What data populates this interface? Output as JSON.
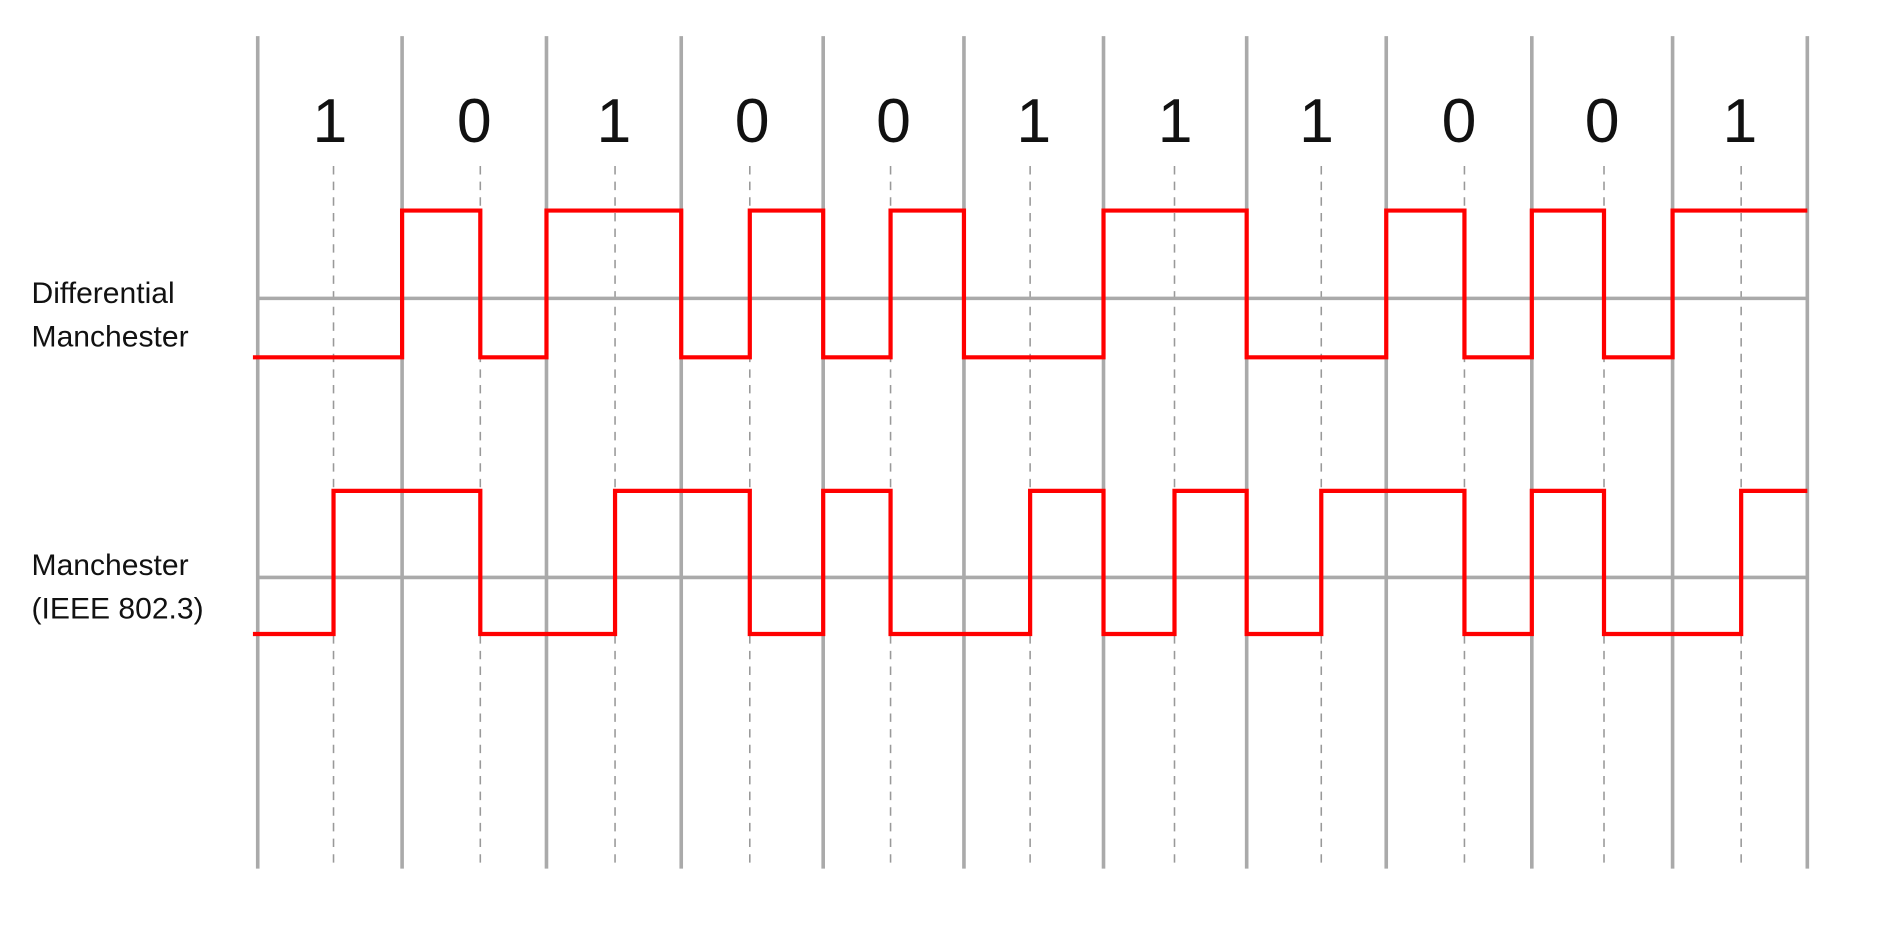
{
  "bits": [
    "1",
    "0",
    "1",
    "0",
    "0",
    "1",
    "1",
    "1",
    "0",
    "0",
    "1"
  ],
  "signals": [
    {
      "label_lines": [
        "Differential",
        "Manchester"
      ],
      "half_bit_levels": [
        0,
        0,
        1,
        0,
        1,
        1,
        0,
        1,
        0,
        1,
        0,
        0,
        1,
        1,
        0,
        0,
        1,
        0,
        1,
        0,
        1,
        1
      ]
    },
    {
      "label_lines": [
        "Manchester",
        "(IEEE 802.3)"
      ],
      "half_bit_levels": [
        0,
        1,
        1,
        0,
        0,
        1,
        1,
        0,
        1,
        0,
        0,
        1,
        0,
        1,
        0,
        1,
        1,
        0,
        1,
        0,
        0,
        1
      ]
    }
  ],
  "colors": {
    "signal": "#ff0000",
    "grid": "#aaaaaa",
    "text": "#111111"
  }
}
